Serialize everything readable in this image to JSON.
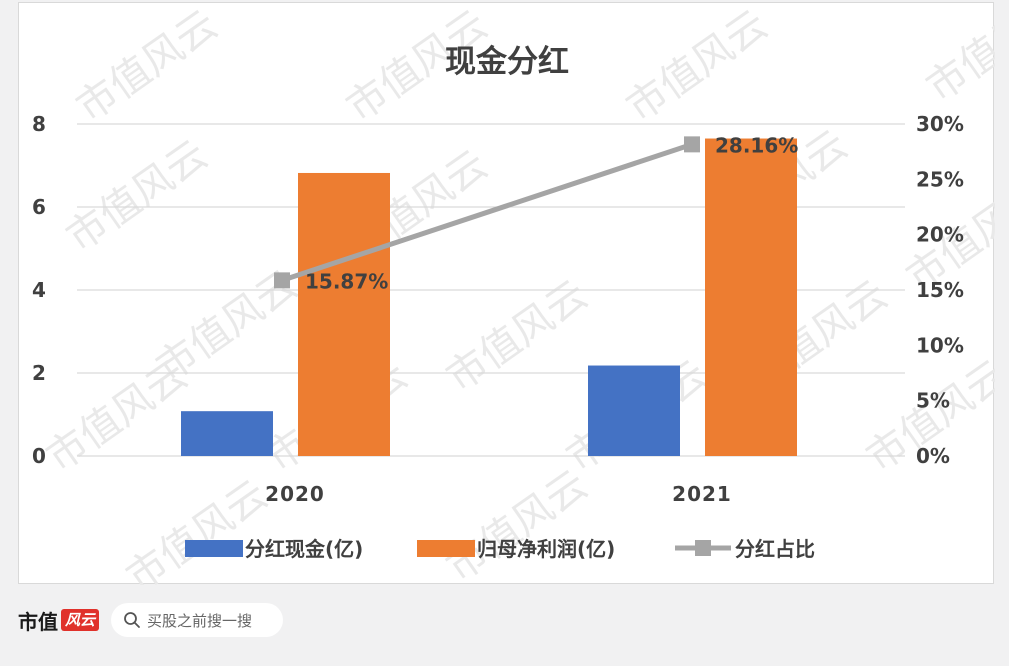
{
  "chart_data": {
    "type": "bar",
    "title": "现金分红",
    "categories": [
      "2020",
      "2021"
    ],
    "series": [
      {
        "name": "分红现金(亿)",
        "type": "bar",
        "axis": "left",
        "color": "#4472c4",
        "values": [
          1.08,
          2.18
        ]
      },
      {
        "name": "归母净利润(亿)",
        "type": "bar",
        "axis": "left",
        "color": "#ed7d31",
        "values": [
          6.82,
          7.65
        ]
      },
      {
        "name": "分红占比",
        "type": "line",
        "axis": "right",
        "color": "#a5a5a5",
        "values": [
          15.87,
          28.16
        ],
        "labels": [
          "15.87%",
          "28.16%"
        ]
      }
    ],
    "y_left": {
      "min": 0,
      "max": 8,
      "ticks": [
        "0",
        "2",
        "4",
        "6",
        "8"
      ]
    },
    "y_right": {
      "min": 0,
      "max": 30,
      "ticks": [
        "0%",
        "5%",
        "10%",
        "15%",
        "20%",
        "25%",
        "30%"
      ]
    },
    "grid": true,
    "legend_position": "bottom"
  },
  "watermark": "市值风云",
  "footer": {
    "brand_text": "市值",
    "brand_badge": "风云",
    "search_placeholder": "买股之前搜一搜"
  }
}
